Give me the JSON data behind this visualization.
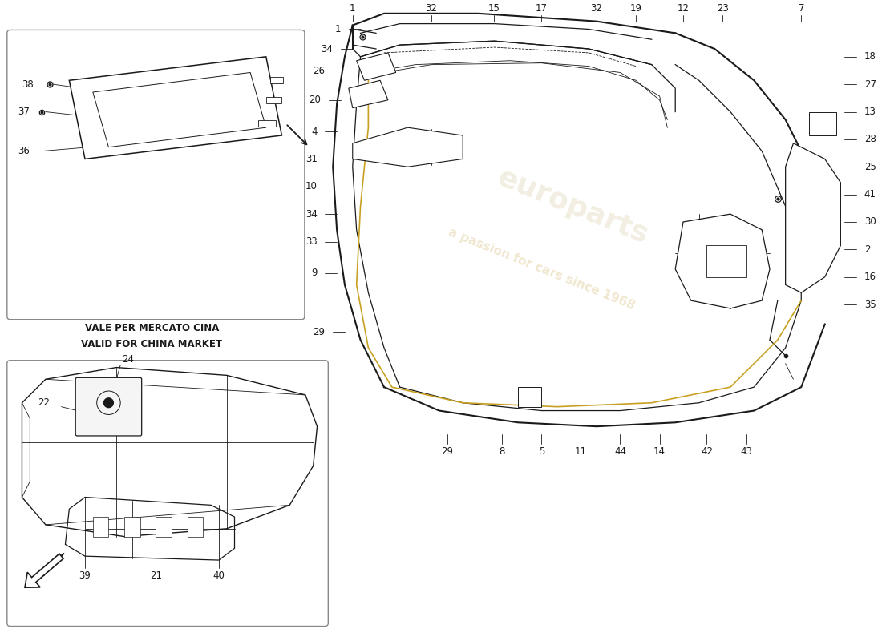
{
  "bg_color": "#ffffff",
  "line_color": "#1a1a1a",
  "wm_color1": "#c8a850",
  "wm_color2": "#b8a060",
  "china_text1": "VALE PER MERCATO CINA",
  "china_text2": "VALID FOR CHINA MARKET",
  "fs": 8.5,
  "lw_thick": 1.5,
  "lw_med": 0.9,
  "lw_thin": 0.6,
  "lw_leader": 0.6
}
